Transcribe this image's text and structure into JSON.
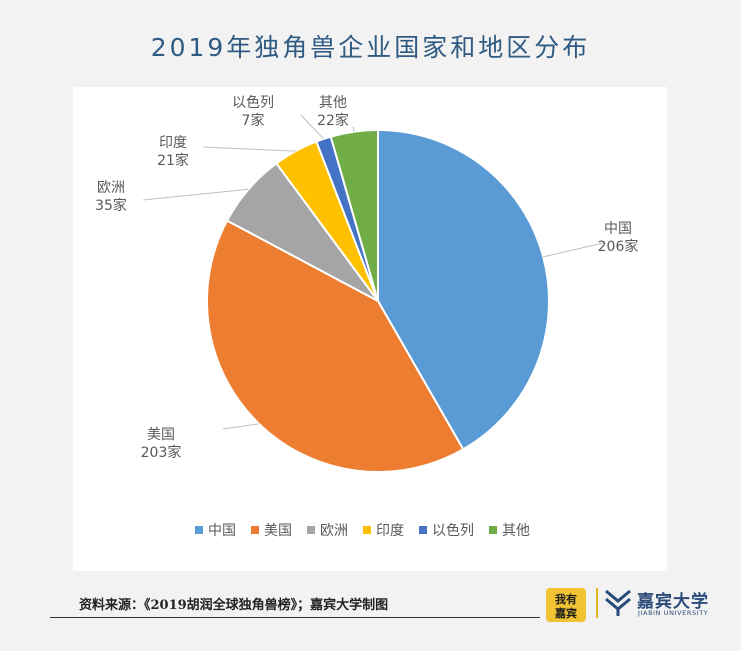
{
  "title": "2019年独角兽企业国家和地区分布",
  "chart_data": {
    "type": "pie",
    "title": "2019年独角兽企业国家和地区分布",
    "categories": [
      "中国",
      "美国",
      "欧洲",
      "印度",
      "以色列",
      "其他"
    ],
    "values": [
      206,
      203,
      35,
      21,
      7,
      22
    ],
    "value_labels": [
      "206家",
      "203家",
      "35家",
      "21家",
      "7家",
      "22家"
    ],
    "colors": [
      "#5b9bd5",
      "#ed7d31",
      "#a5a5a5",
      "#ffc000",
      "#4472c4",
      "#70ad47"
    ],
    "legend_position": "bottom"
  },
  "footer": {
    "source": "资料来源：《2019胡润全球独角兽榜》；嘉宾大学制图",
    "university_name": "嘉宾大学",
    "university_en": "JIABIN UNIVERSITY",
    "badge_text": "我有嘉宾"
  }
}
